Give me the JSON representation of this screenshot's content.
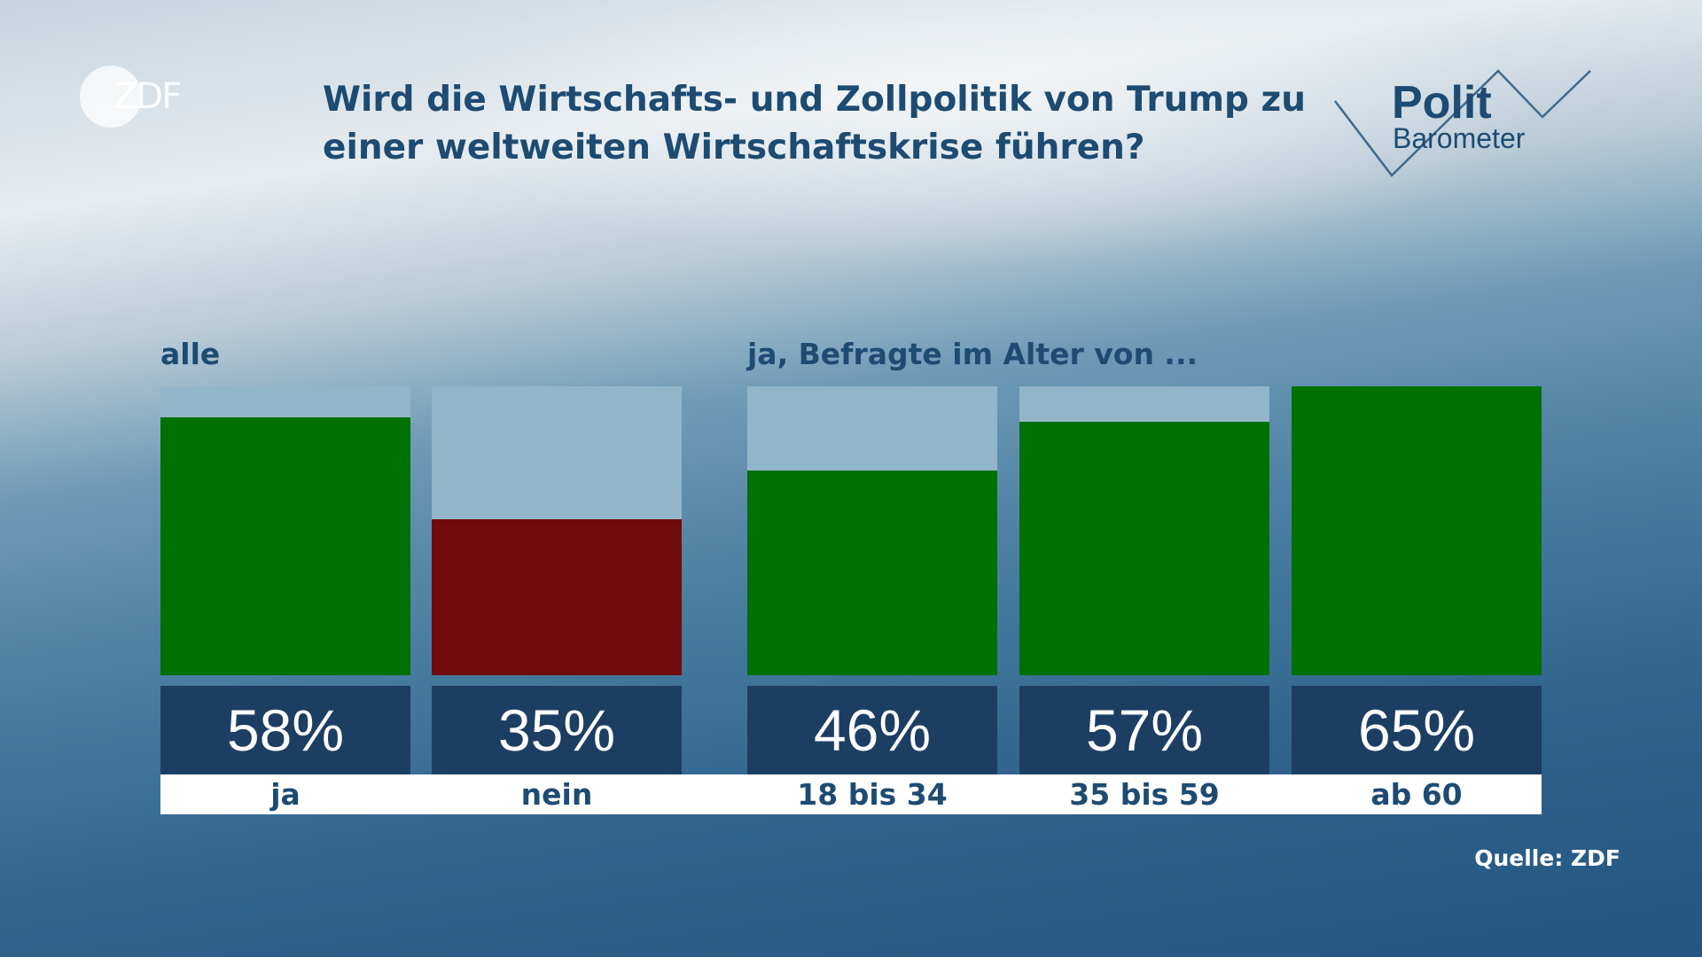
{
  "header": {
    "title": "Wird die Wirtschafts- und Zollpolitik von Trump zu einer weltweiten Wirtschaftskrise führen?",
    "zdf_logo": "ZDF",
    "polit_logo_top": "Polit",
    "polit_logo_bottom": "Barometer"
  },
  "groups": {
    "all_label": "alle",
    "age_label": "ja, Befragte im Alter von ..."
  },
  "source": "Quelle: ZDF",
  "colors": {
    "yes": "#007000",
    "no": "#700c0e",
    "track": "#93b5c9",
    "value_box": "#1d3e63",
    "text": "#1d4b72"
  },
  "chart_data": {
    "type": "bar",
    "title": "Wird die Wirtschafts- und Zollpolitik von Trump zu einer weltweiten Wirtschaftskrise führen?",
    "ylim": [
      0,
      65
    ],
    "groups": [
      {
        "label": "alle",
        "bars": [
          {
            "category": "ja",
            "value": 58,
            "display": "58%",
            "color": "#007000"
          },
          {
            "category": "nein",
            "value": 35,
            "display": "35%",
            "color": "#700c0e"
          }
        ]
      },
      {
        "label": "ja, Befragte im Alter von ...",
        "bars": [
          {
            "category": "18 bis 34",
            "value": 46,
            "display": "46%",
            "color": "#007000"
          },
          {
            "category": "35 bis 59",
            "value": 57,
            "display": "57%",
            "color": "#007000"
          },
          {
            "category": "ab 60",
            "value": 65,
            "display": "65%",
            "color": "#007000"
          }
        ]
      }
    ]
  }
}
